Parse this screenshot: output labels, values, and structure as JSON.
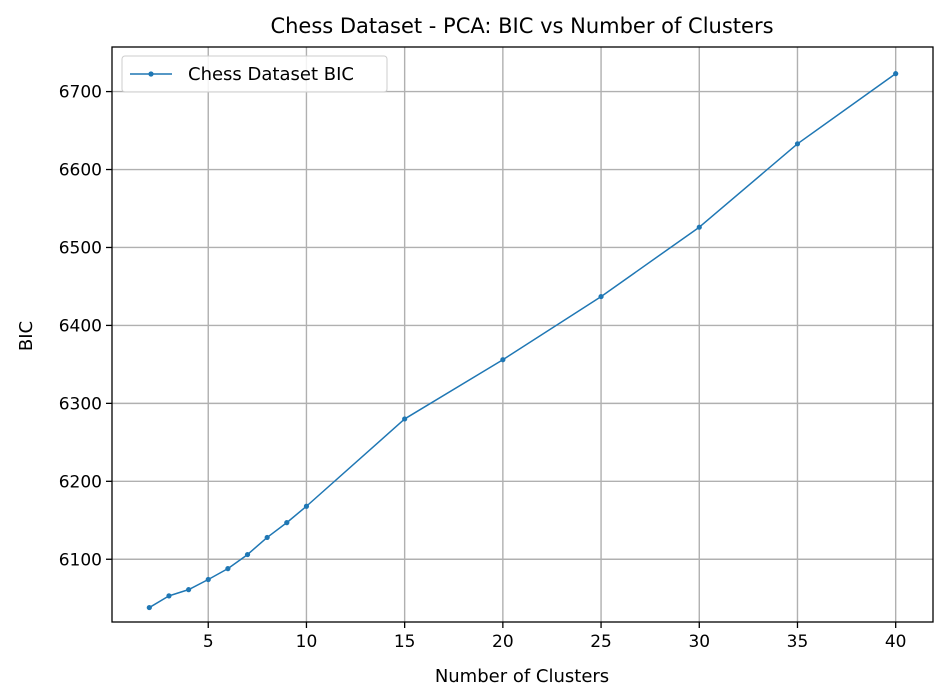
{
  "chart_data": {
    "type": "line",
    "title": "Chess Dataset - PCA: BIC vs Number of Clusters",
    "xlabel": "Number of Clusters",
    "ylabel": "BIC",
    "xlim": [
      0.1,
      41.9
    ],
    "ylim": [
      6019.5,
      6757.2
    ],
    "x_ticks": [
      5,
      10,
      15,
      20,
      25,
      30,
      35,
      40
    ],
    "y_ticks": [
      6100,
      6200,
      6300,
      6400,
      6500,
      6600,
      6700
    ],
    "grid": true,
    "legend_position": "top-left",
    "series": [
      {
        "name": "Chess Dataset BIC",
        "color": "#1f77b4",
        "marker": "dot",
        "x": [
          2,
          3,
          4,
          5,
          6,
          7,
          8,
          9,
          10,
          15,
          20,
          25,
          30,
          35,
          40
        ],
        "y": [
          6038,
          6053,
          6061,
          6074,
          6088,
          6106,
          6128,
          6147,
          6168,
          6280,
          6356,
          6437,
          6526,
          6633,
          6723
        ]
      }
    ]
  }
}
